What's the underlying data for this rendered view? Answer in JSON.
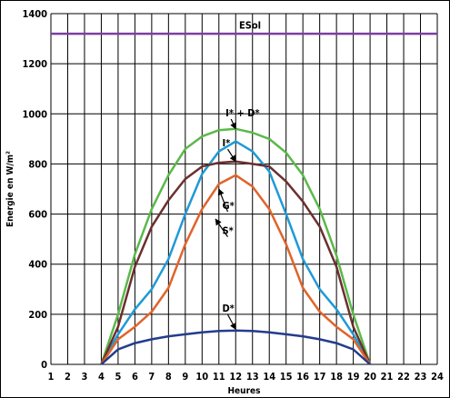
{
  "chart_data": {
    "type": "line",
    "title": "",
    "xlabel": "Heures",
    "ylabel": "Energie en W/m²",
    "xlim": [
      1,
      24
    ],
    "ylim": [
      0,
      1400
    ],
    "xticks": [
      1,
      2,
      3,
      4,
      5,
      6,
      7,
      8,
      9,
      10,
      11,
      12,
      13,
      14,
      15,
      16,
      17,
      18,
      19,
      20,
      21,
      22,
      23,
      24
    ],
    "yticks": [
      0,
      200,
      400,
      600,
      800,
      1000,
      1200,
      1400
    ],
    "grid": true,
    "legend": "none",
    "series": [
      {
        "name": "ESol",
        "color": "#7b3fa0",
        "x": [
          1,
          24
        ],
        "y": [
          1320,
          1320
        ]
      },
      {
        "name": "I* + D*",
        "color": "#5bb94a",
        "x": [
          4,
          5,
          6,
          7,
          8,
          9,
          10,
          11,
          12,
          13,
          14,
          15,
          16,
          17,
          18,
          19,
          20
        ],
        "y": [
          0,
          200,
          440,
          620,
          755,
          860,
          910,
          935,
          940,
          925,
          900,
          845,
          755,
          620,
          435,
          200,
          0
        ]
      },
      {
        "name": "I*",
        "color": "#1e9ad6",
        "x": [
          4,
          5,
          6,
          7,
          8,
          9,
          10,
          11,
          12,
          13,
          14,
          15,
          16,
          17,
          18,
          19,
          20
        ],
        "y": [
          0,
          120,
          220,
          300,
          420,
          600,
          760,
          850,
          890,
          850,
          770,
          600,
          420,
          300,
          220,
          120,
          0
        ]
      },
      {
        "name": "G*",
        "color": "#6b2f2f",
        "x": [
          4,
          5,
          6,
          7,
          8,
          9,
          10,
          11,
          12,
          13,
          14,
          15,
          16,
          17,
          18,
          19,
          20
        ],
        "y": [
          0,
          150,
          390,
          550,
          655,
          740,
          790,
          805,
          810,
          800,
          790,
          730,
          650,
          550,
          390,
          150,
          0
        ]
      },
      {
        "name": "S*",
        "color": "#e0642a",
        "x": [
          4,
          5,
          6,
          7,
          8,
          9,
          10,
          11,
          12,
          13,
          14,
          15,
          16,
          17,
          18,
          19,
          20
        ],
        "y": [
          0,
          100,
          150,
          210,
          305,
          480,
          620,
          720,
          755,
          710,
          620,
          480,
          305,
          210,
          150,
          100,
          0
        ]
      },
      {
        "name": "D*",
        "color": "#233c8c",
        "x": [
          4,
          5,
          6,
          7,
          8,
          9,
          10,
          11,
          12,
          13,
          14,
          15,
          16,
          17,
          18,
          19,
          20
        ],
        "y": [
          0,
          60,
          85,
          100,
          112,
          120,
          128,
          133,
          135,
          133,
          128,
          120,
          112,
          100,
          85,
          60,
          0
        ]
      }
    ],
    "annotations": [
      {
        "text": "ESol",
        "x": 12.2,
        "y": 1340
      },
      {
        "text": "I* + D*",
        "x": 11.4,
        "y": 990,
        "arrow_to": [
          12,
          940
        ]
      },
      {
        "text": "I*",
        "x": 11.2,
        "y": 870,
        "arrow_to": [
          12,
          810
        ]
      },
      {
        "text": "G*",
        "x": 11.2,
        "y": 620,
        "arrow_to": [
          11,
          700
        ]
      },
      {
        "text": "S*",
        "x": 11.2,
        "y": 520,
        "arrow_to": [
          10.8,
          580
        ]
      },
      {
        "text": "D*",
        "x": 11.2,
        "y": 210,
        "arrow_to": [
          12,
          140
        ]
      }
    ]
  }
}
